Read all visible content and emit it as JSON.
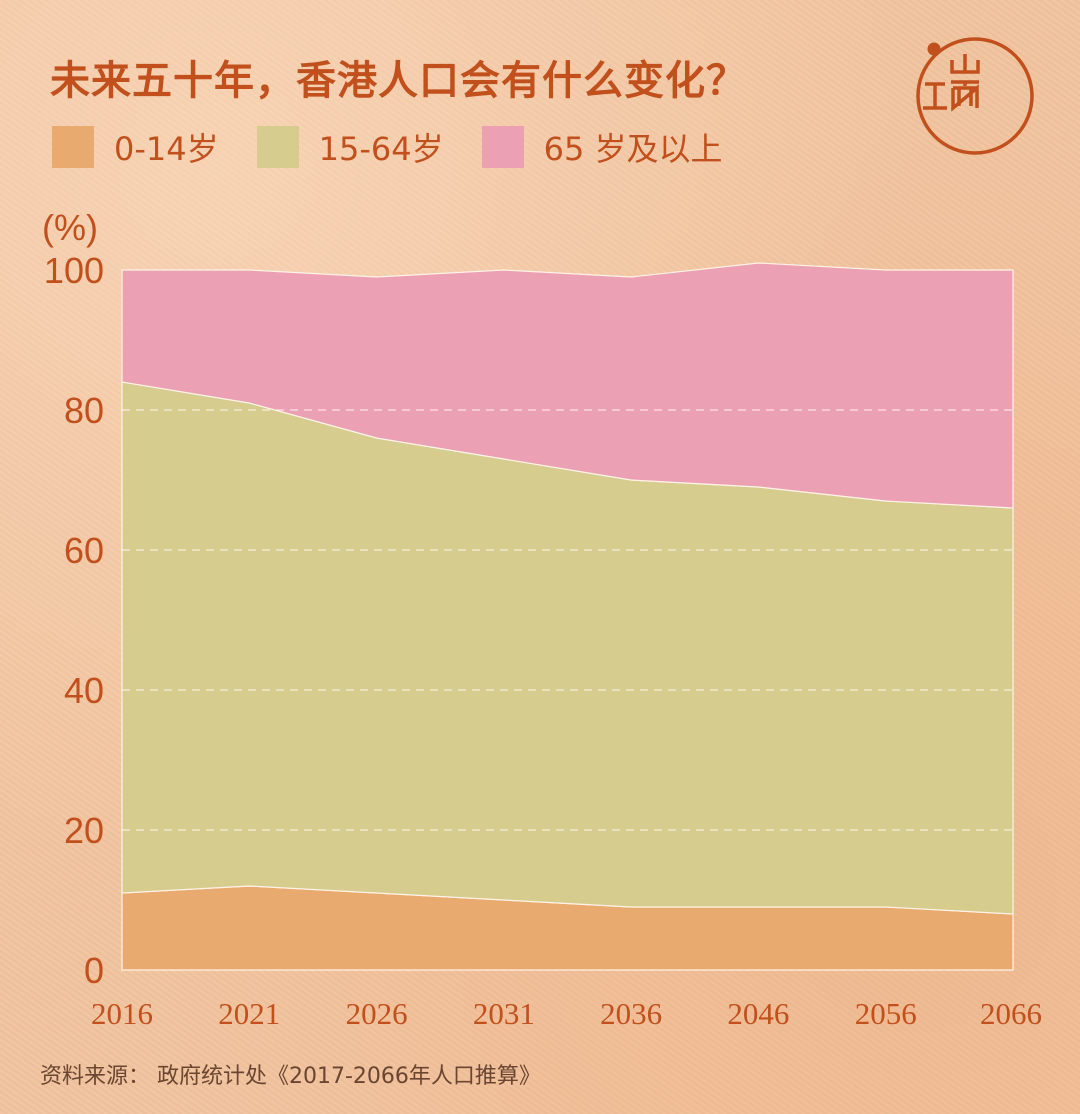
{
  "header": {
    "title": "未来五十年，香港人口会有什么变化？"
  },
  "colors": {
    "accent": "#c1501d",
    "age_0_14": "#e8aa6e",
    "age_15_64": "#d6cc8e",
    "age_65_plus": "#eba0b4"
  },
  "legend": {
    "items": [
      {
        "label": "0-14岁",
        "color": "#e8aa6e"
      },
      {
        "label": "15-64岁",
        "color": "#d6cc8e"
      },
      {
        "label": "65 岁及以上",
        "color": "#eba0b4"
      }
    ]
  },
  "logo": {
    "icon": "jiemian-logo-icon"
  },
  "chart_data": {
    "type": "area",
    "stacked": true,
    "ylabel": "(%)",
    "xlabel": "",
    "ylim": [
      0,
      100
    ],
    "yticks": [
      0,
      20,
      40,
      60,
      80,
      100
    ],
    "categories": [
      "2016",
      "2021",
      "2026",
      "2031",
      "2036",
      "2046",
      "2056",
      "2066"
    ],
    "grid": "dashed horizontal",
    "series": [
      {
        "name": "0-14岁",
        "values": [
          11,
          12,
          11,
          10,
          9,
          9,
          9,
          8
        ]
      },
      {
        "name": "15-64岁",
        "values": [
          73,
          69,
          65,
          63,
          61,
          60,
          58,
          58
        ]
      },
      {
        "name": "65 岁及以上",
        "values": [
          16,
          19,
          23,
          27,
          29,
          32,
          33,
          34
        ]
      }
    ]
  },
  "footer": {
    "source": "资料来源： 政府统计处《2017-2066年人口推算》"
  }
}
